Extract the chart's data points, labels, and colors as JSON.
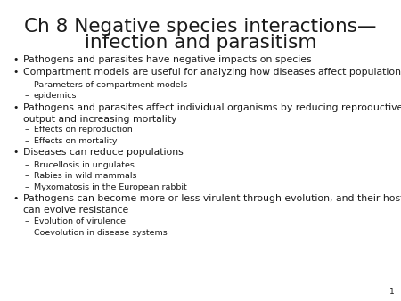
{
  "title_line1": "Ch 8 Negative species interactions—",
  "title_line2": "infection and parasitism",
  "background_color": "#ffffff",
  "text_color": "#1a1a1a",
  "title_fontsize": 15.5,
  "body_fontsize": 7.8,
  "sub_fontsize": 6.8,
  "page_number": "1",
  "bullet_items": [
    {
      "level": 0,
      "text": "Pathogens and parasites have negative impacts on species",
      "multiline": false
    },
    {
      "level": 0,
      "text": "Compartment models are useful for analyzing how diseases affect populations",
      "multiline": false
    },
    {
      "level": 1,
      "text": "Parameters of compartment models",
      "multiline": false
    },
    {
      "level": 1,
      "text": "epidemics",
      "multiline": false
    },
    {
      "level": 0,
      "text": "Pathogens and parasites affect individual organisms by reducing reproductive\noutput and increasing mortality",
      "multiline": true
    },
    {
      "level": 1,
      "text": "Effects on reproduction",
      "multiline": false
    },
    {
      "level": 1,
      "text": "Effects on mortality",
      "multiline": false
    },
    {
      "level": 0,
      "text": "Diseases can reduce populations",
      "multiline": false
    },
    {
      "level": 1,
      "text": "Brucellosis in ungulates",
      "multiline": false
    },
    {
      "level": 1,
      "text": "Rabies in wild mammals",
      "multiline": false
    },
    {
      "level": 1,
      "text": "Myxomatosis in the European rabbit",
      "multiline": false
    },
    {
      "level": 0,
      "text": "Pathogens can become more or less virulent through evolution, and their hosts\ncan evolve resistance",
      "multiline": true
    },
    {
      "level": 1,
      "text": "Evolution of virulence",
      "multiline": false
    },
    {
      "level": 1,
      "text": "Coevolution in disease systems",
      "multiline": false
    }
  ]
}
